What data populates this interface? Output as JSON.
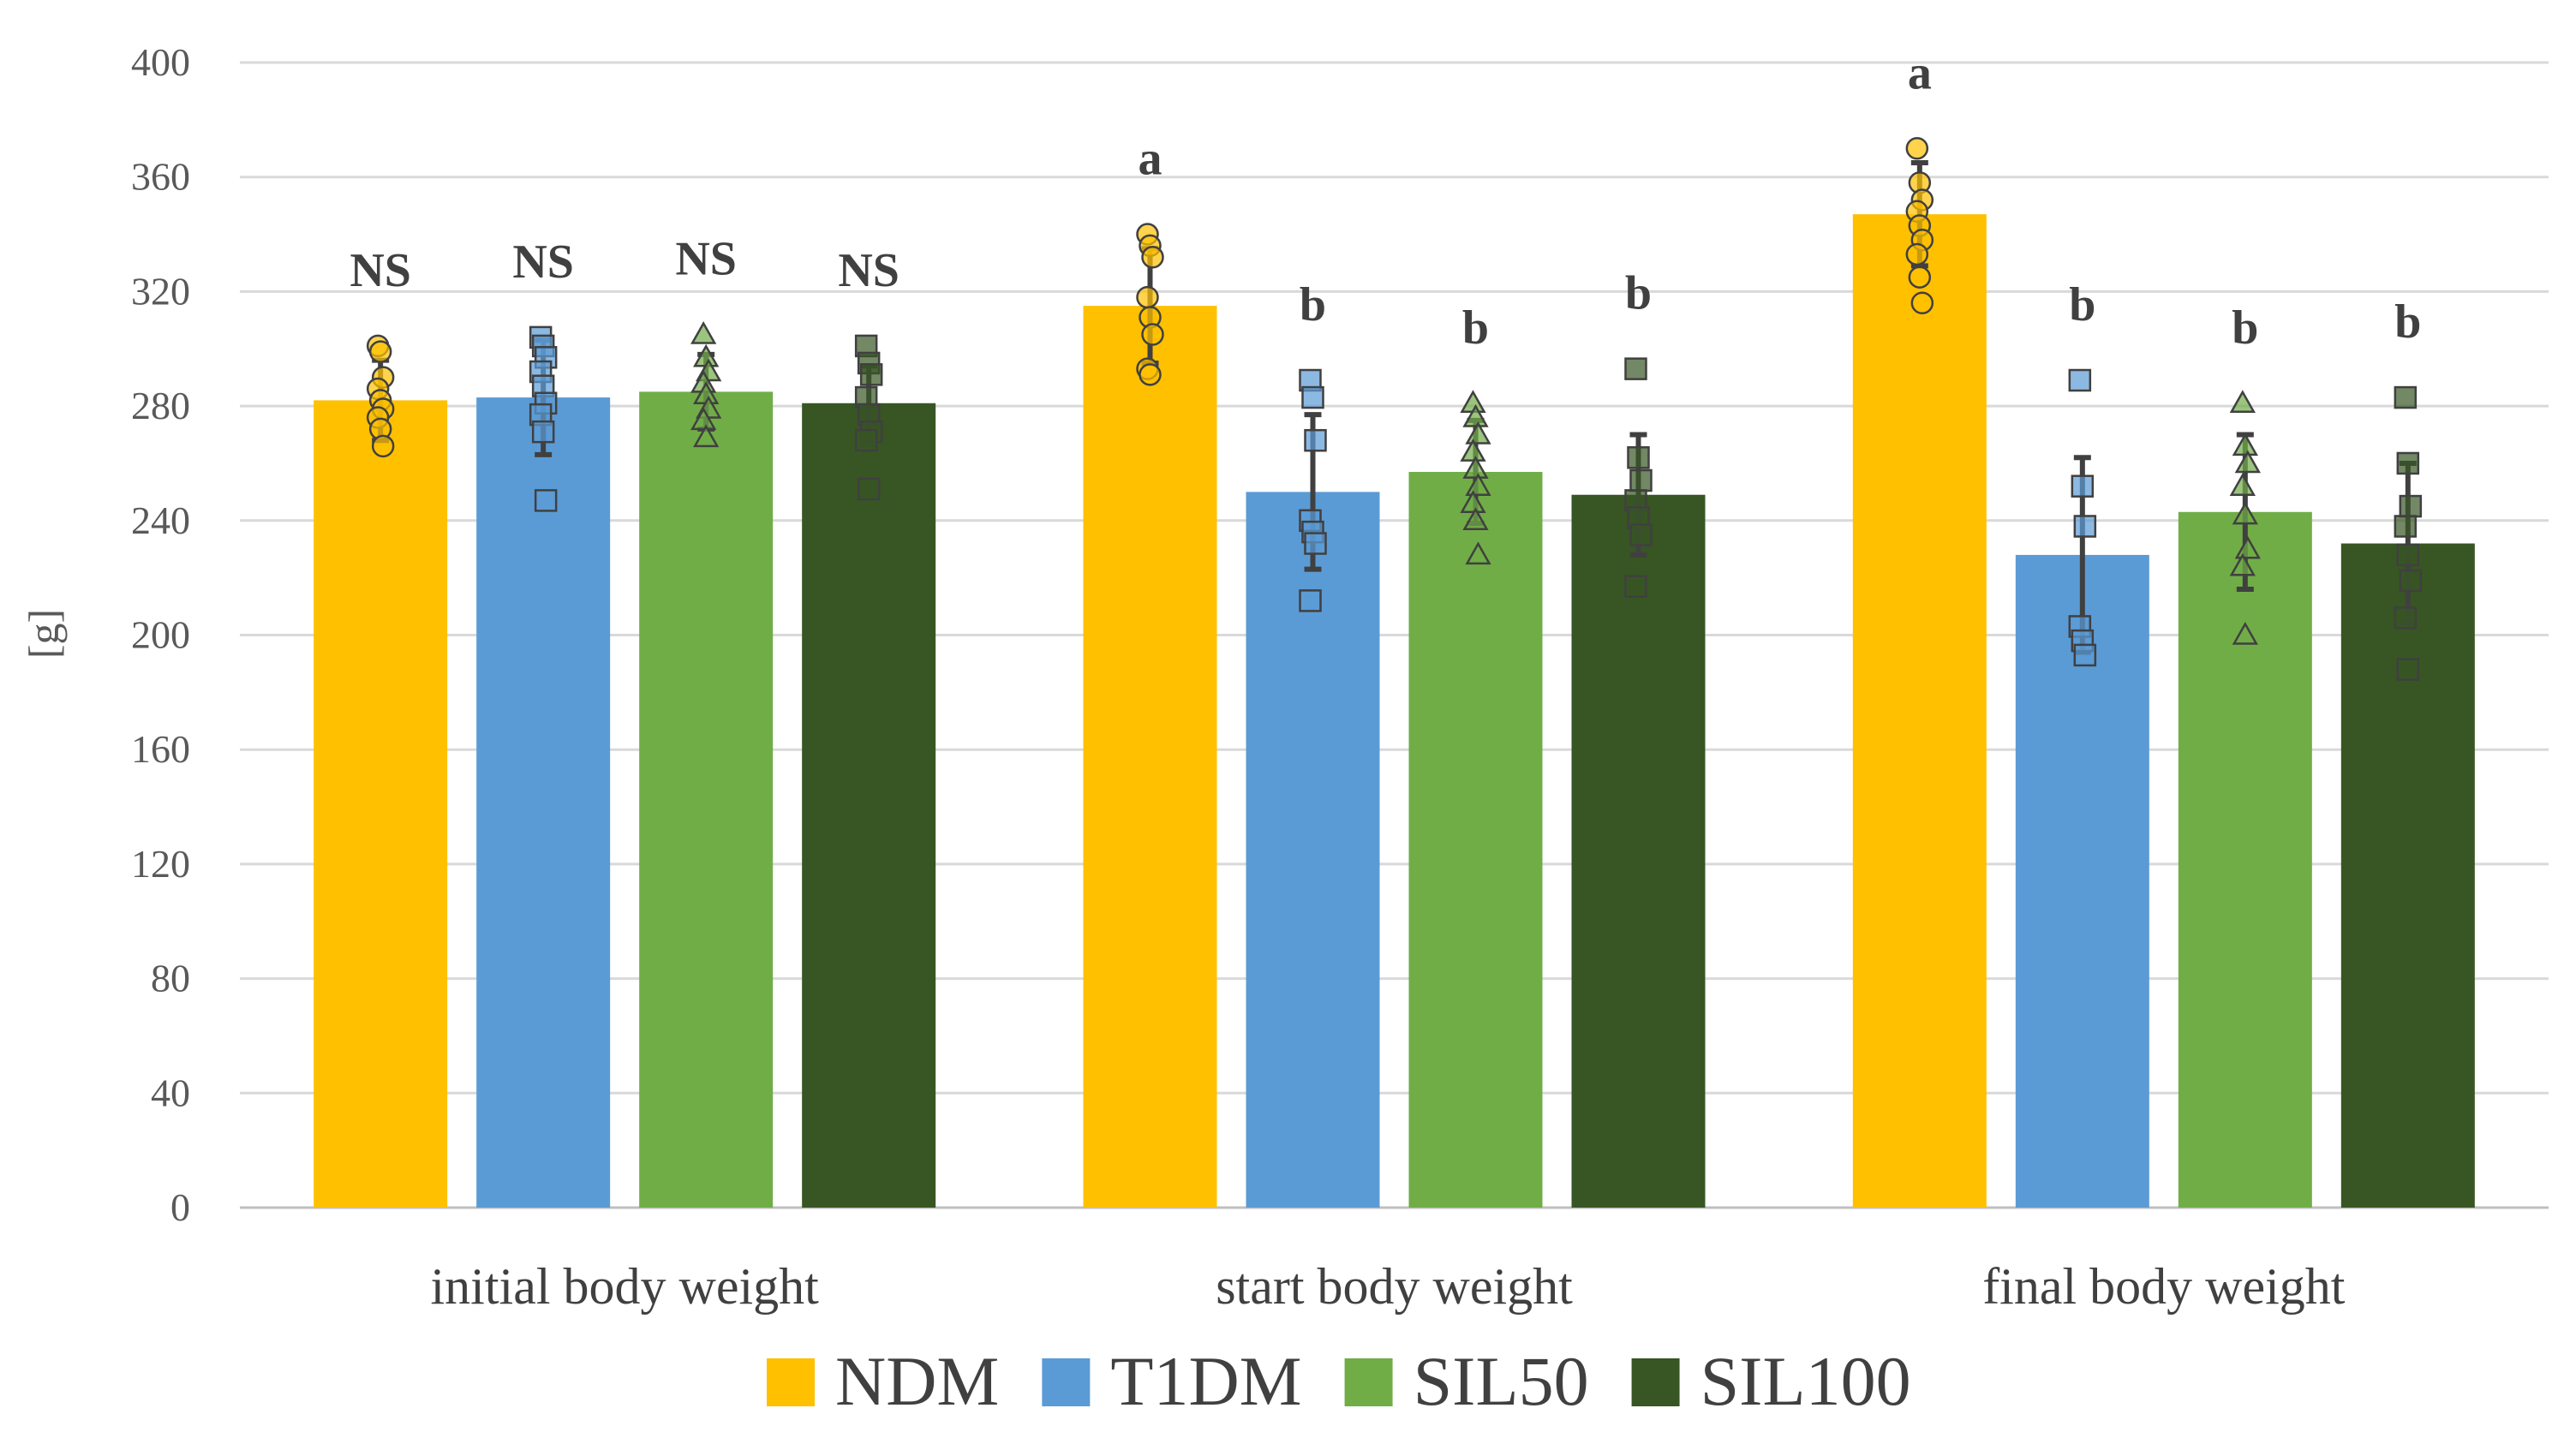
{
  "chart_data": {
    "type": "bar",
    "title": "",
    "xlabel": "",
    "ylabel": "[g]",
    "ylim": [
      0,
      400
    ],
    "yticks": [
      0,
      40,
      80,
      120,
      160,
      200,
      240,
      280,
      320,
      360,
      400
    ],
    "grid": true,
    "legend_position": "bottom",
    "categories": [
      "initial body weight",
      "start body weight",
      "final body weight"
    ],
    "series": [
      {
        "name": "NDM",
        "color": "#FFC000",
        "marker": "circle",
        "values": [
          282,
          315,
          347
        ],
        "sd": [
          14,
          20,
          18
        ],
        "points": [
          [
            301,
            299,
            290,
            286,
            282,
            279,
            276,
            272,
            266
          ],
          [
            340,
            336,
            332,
            318,
            311,
            305,
            293,
            291
          ],
          [
            370,
            358,
            352,
            348,
            343,
            338,
            333,
            325,
            316
          ]
        ],
        "sig": [
          "NS",
          "a",
          "a"
        ]
      },
      {
        "name": "T1DM",
        "color": "#5B9BD5",
        "marker": "square",
        "values": [
          283,
          250,
          228
        ],
        "sd": [
          20,
          27,
          34
        ],
        "points": [
          [
            304,
            301,
            297,
            292,
            287,
            281,
            277,
            271,
            247
          ],
          [
            289,
            283,
            268,
            240,
            236,
            232,
            212
          ],
          [
            289,
            252,
            238,
            203,
            198,
            193
          ]
        ],
        "sig": [
          "NS",
          "b",
          "b"
        ]
      },
      {
        "name": "SIL50",
        "color": "#70AD47",
        "marker": "triangle",
        "values": [
          285,
          257,
          243
        ],
        "sd": [
          13,
          18,
          27
        ],
        "points": [
          [
            305,
            297,
            292,
            288,
            284,
            279,
            275,
            269
          ],
          [
            281,
            276,
            270,
            264,
            258,
            252,
            246,
            240,
            228
          ],
          [
            281,
            266,
            260,
            252,
            242,
            230,
            224,
            200
          ]
        ],
        "sig": [
          "NS",
          "b",
          "b"
        ]
      },
      {
        "name": "SIL100",
        "color": "#375623",
        "marker": "square",
        "values": [
          281,
          249,
          232
        ],
        "sd": [
          13,
          21,
          28
        ],
        "points": [
          [
            301,
            295,
            291,
            283,
            277,
            271,
            268,
            251
          ],
          [
            293,
            262,
            254,
            247,
            241,
            235,
            217
          ],
          [
            283,
            260,
            245,
            238,
            228,
            219,
            206,
            188
          ]
        ],
        "sig": [
          "NS",
          "b",
          "b"
        ]
      }
    ]
  }
}
